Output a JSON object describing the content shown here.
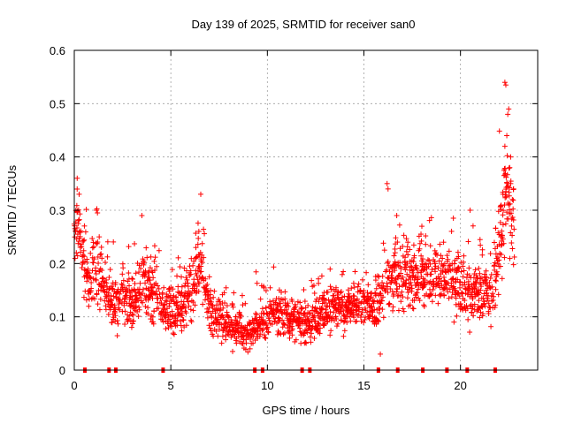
{
  "chart_data": {
    "type": "scatter",
    "title": "Day 139 of 2025, SRMTID for receiver san0",
    "xlabel": "GPS time / hours",
    "ylabel": "SRMTID / TECUs",
    "xlim": [
      0,
      24
    ],
    "ylim": [
      0,
      0.6
    ],
    "xticks": [
      0,
      5,
      10,
      15,
      20
    ],
    "xtick_labels": [
      "0",
      "5",
      "10",
      "15",
      "20"
    ],
    "yticks": [
      0,
      0.1,
      0.2,
      0.3,
      0.4,
      0.5,
      0.6
    ],
    "ytick_labels": [
      "0",
      "0.1",
      "0.2",
      "0.3",
      "0.4",
      "0.5",
      "0.6"
    ],
    "grid": true,
    "marker": "+",
    "color": "#ff0000",
    "series": [
      {
        "name": "san0",
        "trend": [
          [
            0.0,
            0.24,
            0.05
          ],
          [
            0.2,
            0.27,
            0.05
          ],
          [
            0.5,
            0.21,
            0.05
          ],
          [
            0.8,
            0.16,
            0.04
          ],
          [
            1.2,
            0.2,
            0.06
          ],
          [
            1.6,
            0.16,
            0.05
          ],
          [
            2.0,
            0.12,
            0.04
          ],
          [
            2.5,
            0.14,
            0.05
          ],
          [
            3.0,
            0.12,
            0.04
          ],
          [
            3.5,
            0.16,
            0.06
          ],
          [
            4.0,
            0.15,
            0.05
          ],
          [
            4.5,
            0.12,
            0.04
          ],
          [
            5.0,
            0.11,
            0.04
          ],
          [
            5.5,
            0.12,
            0.04
          ],
          [
            6.0,
            0.15,
            0.05
          ],
          [
            6.5,
            0.2,
            0.06
          ],
          [
            7.0,
            0.11,
            0.04
          ],
          [
            7.5,
            0.1,
            0.035
          ],
          [
            8.0,
            0.08,
            0.03
          ],
          [
            8.5,
            0.075,
            0.03
          ],
          [
            9.0,
            0.07,
            0.03
          ],
          [
            9.5,
            0.085,
            0.03
          ],
          [
            10.0,
            0.1,
            0.035
          ],
          [
            10.5,
            0.11,
            0.03
          ],
          [
            11.0,
            0.1,
            0.035
          ],
          [
            11.5,
            0.09,
            0.03
          ],
          [
            12.0,
            0.085,
            0.03
          ],
          [
            12.5,
            0.1,
            0.035
          ],
          [
            13.0,
            0.11,
            0.035
          ],
          [
            13.5,
            0.12,
            0.035
          ],
          [
            14.0,
            0.11,
            0.035
          ],
          [
            14.5,
            0.12,
            0.035
          ],
          [
            15.0,
            0.13,
            0.035
          ],
          [
            15.5,
            0.11,
            0.04
          ],
          [
            16.0,
            0.14,
            0.05
          ],
          [
            16.5,
            0.19,
            0.06
          ],
          [
            17.0,
            0.18,
            0.05
          ],
          [
            17.5,
            0.17,
            0.05
          ],
          [
            18.0,
            0.19,
            0.05
          ],
          [
            18.5,
            0.17,
            0.05
          ],
          [
            19.0,
            0.18,
            0.05
          ],
          [
            19.5,
            0.17,
            0.05
          ],
          [
            20.0,
            0.15,
            0.05
          ],
          [
            20.5,
            0.14,
            0.05
          ],
          [
            21.0,
            0.15,
            0.05
          ],
          [
            21.5,
            0.14,
            0.05
          ],
          [
            22.0,
            0.22,
            0.07
          ],
          [
            22.3,
            0.32,
            0.09
          ],
          [
            22.6,
            0.3,
            0.08
          ],
          [
            22.8,
            0.24,
            0.05
          ]
        ],
        "peaks": [
          [
            0.15,
            0.36
          ],
          [
            0.25,
            0.33
          ],
          [
            1.15,
            0.3
          ],
          [
            1.2,
            0.295
          ],
          [
            3.5,
            0.29
          ],
          [
            6.55,
            0.33
          ],
          [
            16.2,
            0.35
          ],
          [
            16.25,
            0.34
          ],
          [
            16.7,
            0.29
          ],
          [
            18.0,
            0.27
          ],
          [
            20.5,
            0.3
          ],
          [
            22.3,
            0.54
          ],
          [
            22.35,
            0.535
          ],
          [
            22.5,
            0.49
          ],
          [
            22.45,
            0.48
          ],
          [
            22.4,
            0.44
          ],
          [
            22.3,
            0.42
          ],
          [
            22.6,
            0.4
          ],
          [
            22.55,
            0.38
          ],
          [
            22.6,
            0.35
          ],
          [
            22.75,
            0.34
          ],
          [
            22.2,
            0.33
          ],
          [
            8.2,
            0.035
          ],
          [
            9.1,
            0.04
          ],
          [
            15.85,
            0.03
          ]
        ],
        "zero_values_x": [
          0.55,
          1.8,
          2.15,
          4.6,
          9.35,
          9.75,
          11.8,
          12.2,
          15.75,
          16.75,
          18.05,
          19.3,
          20.35,
          21.8
        ]
      }
    ]
  }
}
